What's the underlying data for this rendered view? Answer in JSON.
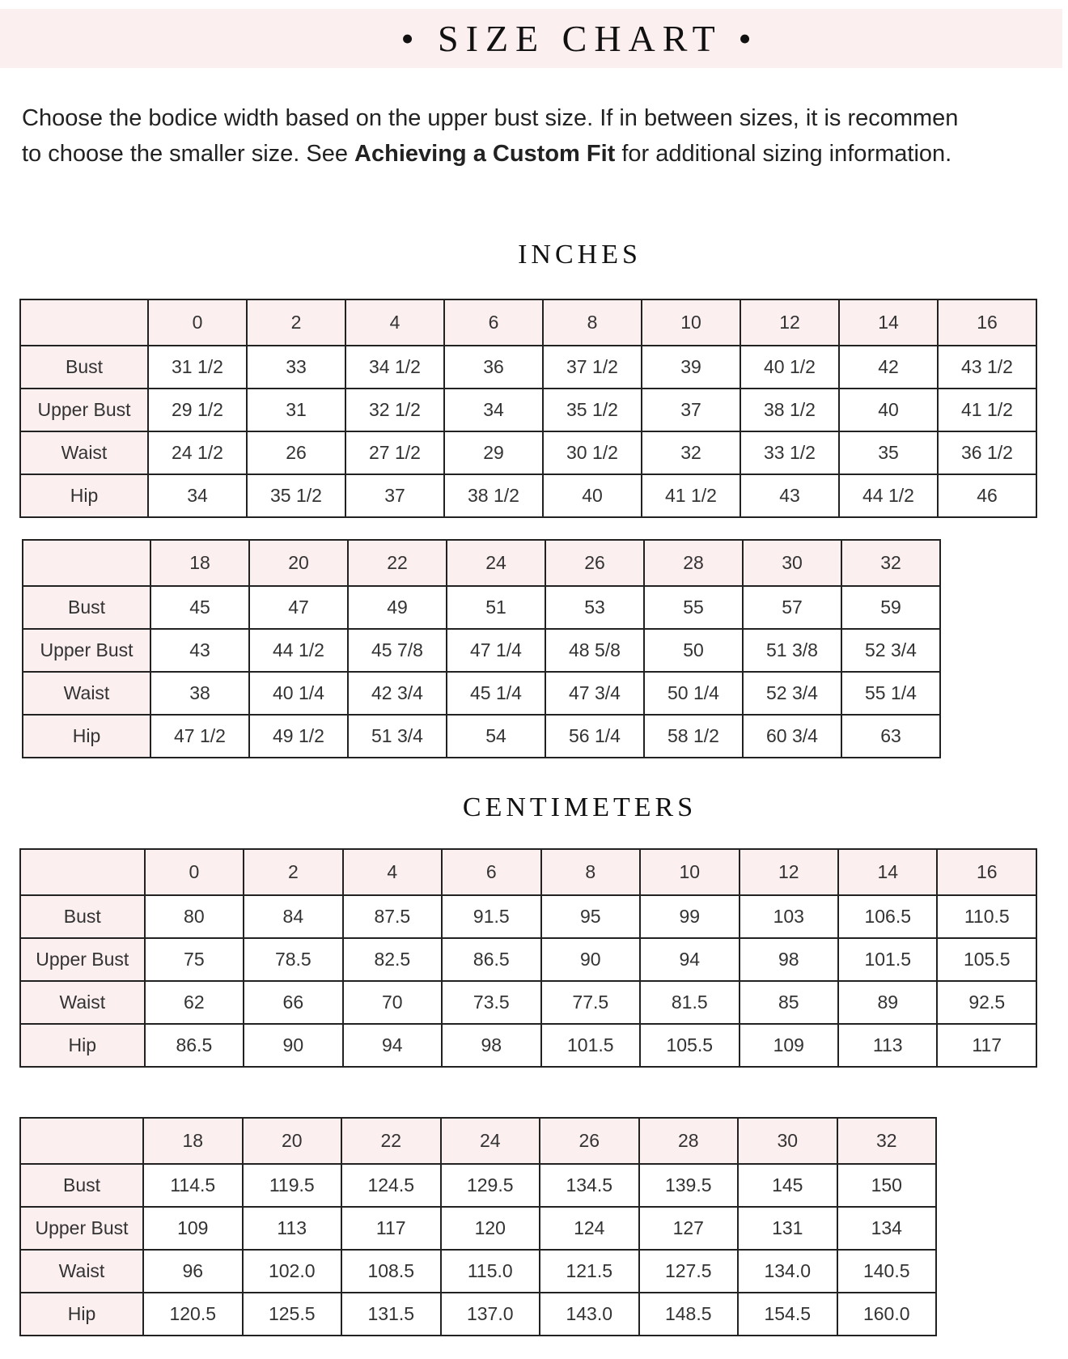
{
  "header": {
    "title": "• SIZE CHART •"
  },
  "intro": {
    "text_before": "Choose the bodice width based on the upper bust size. If in between sizes, it is recommended to choose the smaller size. See ",
    "line1": "Choose the bodice width based on the upper bust size. If in between sizes, it is recommen",
    "line2_before": "to choose the smaller size. See ",
    "link": "Achieving a Custom Fit",
    "line2_after": " for additional sizing information."
  },
  "colors": {
    "accent_pink": "#fcefef",
    "border": "#222222"
  },
  "sections": {
    "inches": "INCHES",
    "centimeters": "CENTIMETERS"
  },
  "tables": [
    {
      "sizes": [
        "0",
        "2",
        "4",
        "6",
        "8",
        "10",
        "12",
        "14",
        "16"
      ],
      "rows": [
        {
          "label": "Bust",
          "values": [
            "31 1/2",
            "33",
            "34 1/2",
            "36",
            "37 1/2",
            "39",
            "40 1/2",
            "42",
            "43 1/2"
          ]
        },
        {
          "label": "Upper Bust",
          "values": [
            "29 1/2",
            "31",
            "32 1/2",
            "34",
            "35 1/2",
            "37",
            "38 1/2",
            "40",
            "41 1/2"
          ]
        },
        {
          "label": "Waist",
          "values": [
            "24 1/2",
            "26",
            "27 1/2",
            "29",
            "30 1/2",
            "32",
            "33 1/2",
            "35",
            "36 1/2"
          ]
        },
        {
          "label": "Hip",
          "values": [
            "34",
            "35 1/2",
            "37",
            "38 1/2",
            "40",
            "41 1/2",
            "43",
            "44 1/2",
            "46"
          ]
        }
      ]
    },
    {
      "sizes": [
        "18",
        "20",
        "22",
        "24",
        "26",
        "28",
        "30",
        "32"
      ],
      "rows": [
        {
          "label": "Bust",
          "values": [
            "45",
            "47",
            "49",
            "51",
            "53",
            "55",
            "57",
            "59"
          ]
        },
        {
          "label": "Upper Bust",
          "values": [
            "43",
            "44 1/2",
            "45 7/8",
            "47 1/4",
            "48 5/8",
            "50",
            "51 3/8",
            "52 3/4"
          ]
        },
        {
          "label": "Waist",
          "values": [
            "38",
            "40 1/4",
            "42 3/4",
            "45 1/4",
            "47 3/4",
            "50 1/4",
            "52 3/4",
            "55 1/4"
          ]
        },
        {
          "label": "Hip",
          "values": [
            "47 1/2",
            "49 1/2",
            "51 3/4",
            "54",
            "56 1/4",
            "58 1/2",
            "60 3/4",
            "63"
          ]
        }
      ]
    },
    {
      "sizes": [
        "0",
        "2",
        "4",
        "6",
        "8",
        "10",
        "12",
        "14",
        "16"
      ],
      "rows": [
        {
          "label": "Bust",
          "values": [
            "80",
            "84",
            "87.5",
            "91.5",
            "95",
            "99",
            "103",
            "106.5",
            "110.5"
          ]
        },
        {
          "label": "Upper Bust",
          "values": [
            "75",
            "78.5",
            "82.5",
            "86.5",
            "90",
            "94",
            "98",
            "101.5",
            "105.5"
          ]
        },
        {
          "label": "Waist",
          "values": [
            "62",
            "66",
            "70",
            "73.5",
            "77.5",
            "81.5",
            "85",
            "89",
            "92.5"
          ]
        },
        {
          "label": "Hip",
          "values": [
            "86.5",
            "90",
            "94",
            "98",
            "101.5",
            "105.5",
            "109",
            "113",
            "117"
          ]
        }
      ]
    },
    {
      "sizes": [
        "18",
        "20",
        "22",
        "24",
        "26",
        "28",
        "30",
        "32"
      ],
      "rows": [
        {
          "label": "Bust",
          "values": [
            "114.5",
            "119.5",
            "124.5",
            "129.5",
            "134.5",
            "139.5",
            "145",
            "150"
          ]
        },
        {
          "label": "Upper Bust",
          "values": [
            "109",
            "113",
            "117",
            "120",
            "124",
            "127",
            "131",
            "134"
          ]
        },
        {
          "label": "Waist",
          "values": [
            "96",
            "102.0",
            "108.5",
            "115.0",
            "121.5",
            "127.5",
            "134.0",
            "140.5"
          ]
        },
        {
          "label": "Hip",
          "values": [
            "120.5",
            "125.5",
            "131.5",
            "137.0",
            "143.0",
            "148.5",
            "154.5",
            "160.0"
          ]
        }
      ]
    }
  ]
}
